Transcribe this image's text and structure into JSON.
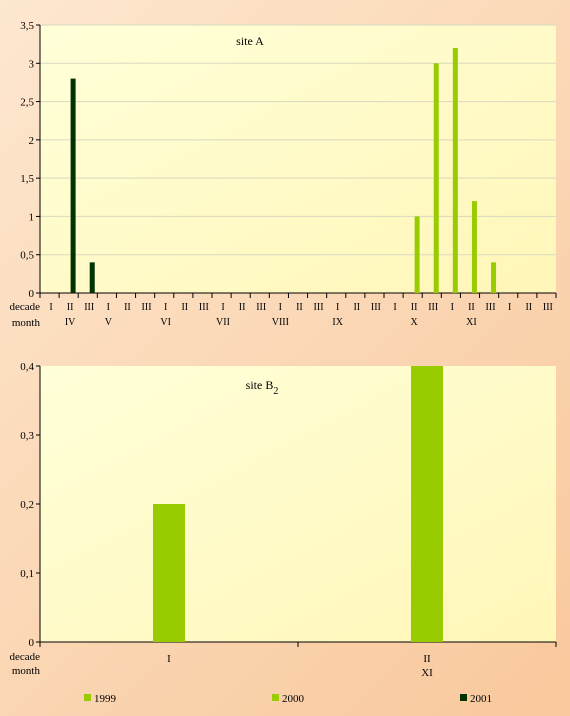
{
  "chart_data": [
    {
      "type": "bar",
      "title": "site A",
      "ylim": [
        0,
        3.5
      ],
      "yticks": [
        "0",
        "0,5",
        "1",
        "1,5",
        "2",
        "2,5",
        "3",
        "3,5"
      ],
      "row_labels": {
        "decade": "decade",
        "month": "month"
      },
      "decades": [
        "I",
        "II",
        "III",
        "I",
        "II",
        "III",
        "I",
        "II",
        "III",
        "I",
        "II",
        "III",
        "I",
        "II",
        "III",
        "I",
        "II",
        "III",
        "I",
        "II",
        "III",
        "I",
        "II",
        "III",
        "I",
        "II",
        "III"
      ],
      "months": [
        {
          "label": "IV",
          "decade_index": 1
        },
        {
          "label": "V",
          "decade_index": 3
        },
        {
          "label": "VI",
          "decade_index": 6
        },
        {
          "label": "VII",
          "decade_index": 9
        },
        {
          "label": "VIII",
          "decade_index": 12
        },
        {
          "label": "IX",
          "decade_index": 15
        },
        {
          "label": "X",
          "decade_index": 19
        },
        {
          "label": "XI",
          "decade_index": 22
        }
      ],
      "series": [
        {
          "name": "1999",
          "color": "#99cc00",
          "values": [
            0,
            0,
            0,
            0,
            0,
            0,
            0,
            0,
            0,
            0,
            0,
            0,
            0,
            0,
            0,
            0,
            0,
            0,
            0,
            0,
            0,
            0,
            0,
            0,
            0,
            0,
            0
          ]
        },
        {
          "name": "2000",
          "color": "#99cc00",
          "values": [
            0,
            0,
            0,
            0,
            0,
            0,
            0,
            0,
            0,
            0,
            0,
            0,
            0,
            0,
            0,
            0,
            0,
            0,
            0,
            1.0,
            3.0,
            3.2,
            1.2,
            0.4,
            0,
            0,
            0
          ]
        },
        {
          "name": "2001",
          "color": "#003300",
          "values": [
            0,
            2.8,
            0.4,
            0,
            0,
            0,
            0,
            0,
            0,
            0,
            0,
            0,
            0,
            0,
            0,
            0,
            0,
            0,
            0,
            0,
            0,
            0,
            0,
            0,
            0,
            0,
            0
          ]
        }
      ]
    },
    {
      "type": "bar",
      "title": "site B",
      "title_subscript": "2",
      "ylim": [
        0,
        0.4
      ],
      "yticks": [
        "0",
        "0,1",
        "0,2",
        "0,3",
        "0,4"
      ],
      "row_labels": {
        "decade": "decade",
        "month": "month"
      },
      "categories": [
        {
          "decade": "I",
          "month": ""
        },
        {
          "decade": "II",
          "month": "XI"
        }
      ],
      "series": [
        {
          "name": "2000",
          "color": "#99cc00",
          "values": [
            0.2,
            0.4
          ]
        }
      ]
    }
  ],
  "legend": [
    {
      "name": "1999",
      "color": "#99cc00"
    },
    {
      "name": "2000",
      "color": "#99cc00"
    },
    {
      "name": "2001",
      "color": "#003300"
    }
  ]
}
